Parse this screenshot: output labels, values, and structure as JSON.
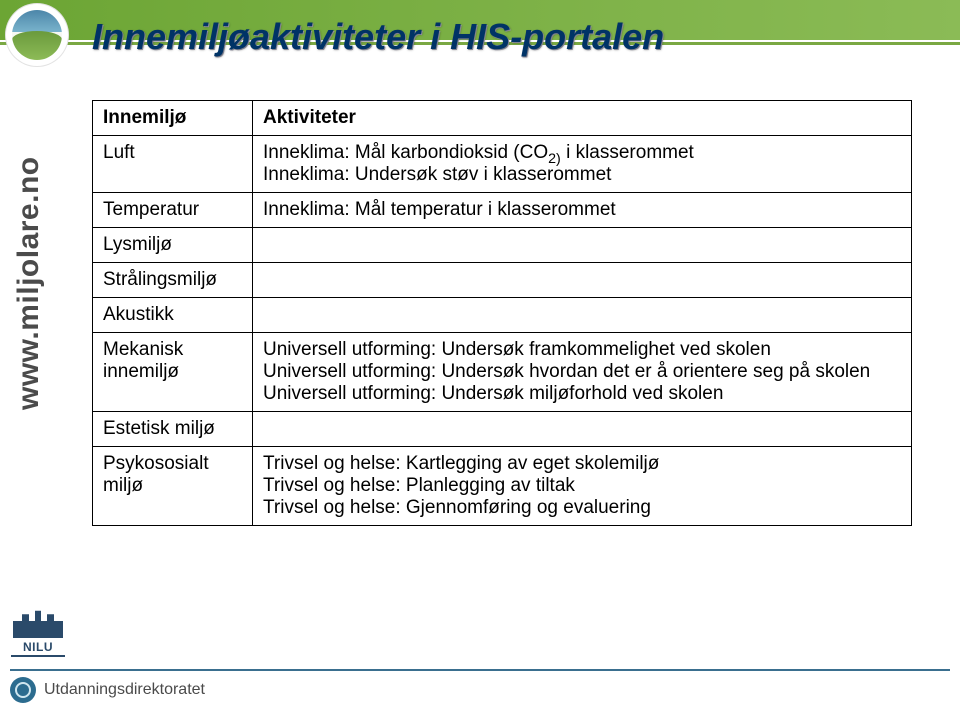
{
  "title": "Innemiljøaktiviteter i HIS-portalen",
  "title_color": "#003366",
  "side_url": "www.miljolare.no",
  "side_url_color": "#4b4b4b",
  "table": {
    "header_left": "Innemiljø",
    "header_right": "Aktiviteter",
    "rows": [
      {
        "left": "Luft",
        "right_lines": [
          "Inneklima: Mål karbondioksid (CO",
          "Inneklima: Undersøk støv i klasserommet"
        ],
        "co2_subscript": "2)",
        "co2_tail": " i klasserommet"
      },
      {
        "left": "Temperatur",
        "right_lines": [
          "Inneklima: Mål temperatur i klasserommet"
        ],
        "co2_subscript": "",
        "co2_tail": ""
      },
      {
        "left": "Lysmiljø",
        "right_lines": [
          ""
        ],
        "co2_subscript": "",
        "co2_tail": ""
      },
      {
        "left": "Strålingsmiljø",
        "right_lines": [
          ""
        ],
        "co2_subscript": "",
        "co2_tail": ""
      },
      {
        "left": "Akustikk",
        "right_lines": [
          ""
        ],
        "co2_subscript": "",
        "co2_tail": ""
      },
      {
        "left": "Mekanisk innemiljø",
        "right_lines": [
          "Universell utforming: Undersøk framkommelighet ved skolen",
          "Universell utforming: Undersøk hvordan det er å orientere seg på skolen",
          "Universell utforming: Undersøk miljøforhold ved skolen"
        ],
        "co2_subscript": "",
        "co2_tail": ""
      },
      {
        "left": "Estetisk miljø",
        "right_lines": [
          ""
        ],
        "co2_subscript": "",
        "co2_tail": ""
      },
      {
        "left": "Psykososialt miljø",
        "right_lines": [
          "Trivsel og helse: Kartlegging av eget skolemiljø",
          "Trivsel og helse: Planlegging av tiltak",
          "Trivsel og helse: Gjennomføring og evaluering"
        ],
        "co2_subscript": "",
        "co2_tail": ""
      }
    ]
  },
  "nilu_label": "NILU",
  "footer_text": "Utdanningsdirektoratet",
  "colors": {
    "header_green_from": "#6ca534",
    "header_green_to": "#8bbb56",
    "footer_rule": "#3a6f8f",
    "table_border": "#000000"
  }
}
